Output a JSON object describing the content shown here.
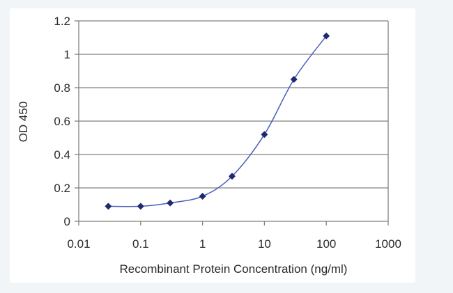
{
  "chart_data": {
    "type": "scatter",
    "xlabel": "Recombinant Protein Concentration (ng/ml)",
    "ylabel": "OD 450",
    "xscale": "log",
    "xlim": [
      0.01,
      1000
    ],
    "ylim": [
      0,
      1.2
    ],
    "x_ticks": [
      "0.01",
      "0.1",
      "1",
      "10",
      "100",
      "1000"
    ],
    "y_ticks": [
      "0",
      "0.2",
      "0.4",
      "0.6",
      "0.8",
      "1",
      "1.2"
    ],
    "grid": "horizontal",
    "series": [
      {
        "points": [
          {
            "x": 0.03,
            "y": 0.09
          },
          {
            "x": 0.1,
            "y": 0.09
          },
          {
            "x": 0.3,
            "y": 0.11
          },
          {
            "x": 1,
            "y": 0.15
          },
          {
            "x": 3,
            "y": 0.27
          },
          {
            "x": 10,
            "y": 0.52
          },
          {
            "x": 30,
            "y": 0.85
          },
          {
            "x": 100,
            "y": 1.11
          }
        ],
        "marker": "diamond",
        "color": "#1f2a6e",
        "line_color": "#4a5fbf"
      }
    ],
    "colors": {
      "background": "#f2f5f7",
      "plot_area": "#ffffff",
      "grid": "#808080",
      "text": "#2b2b2b"
    }
  }
}
